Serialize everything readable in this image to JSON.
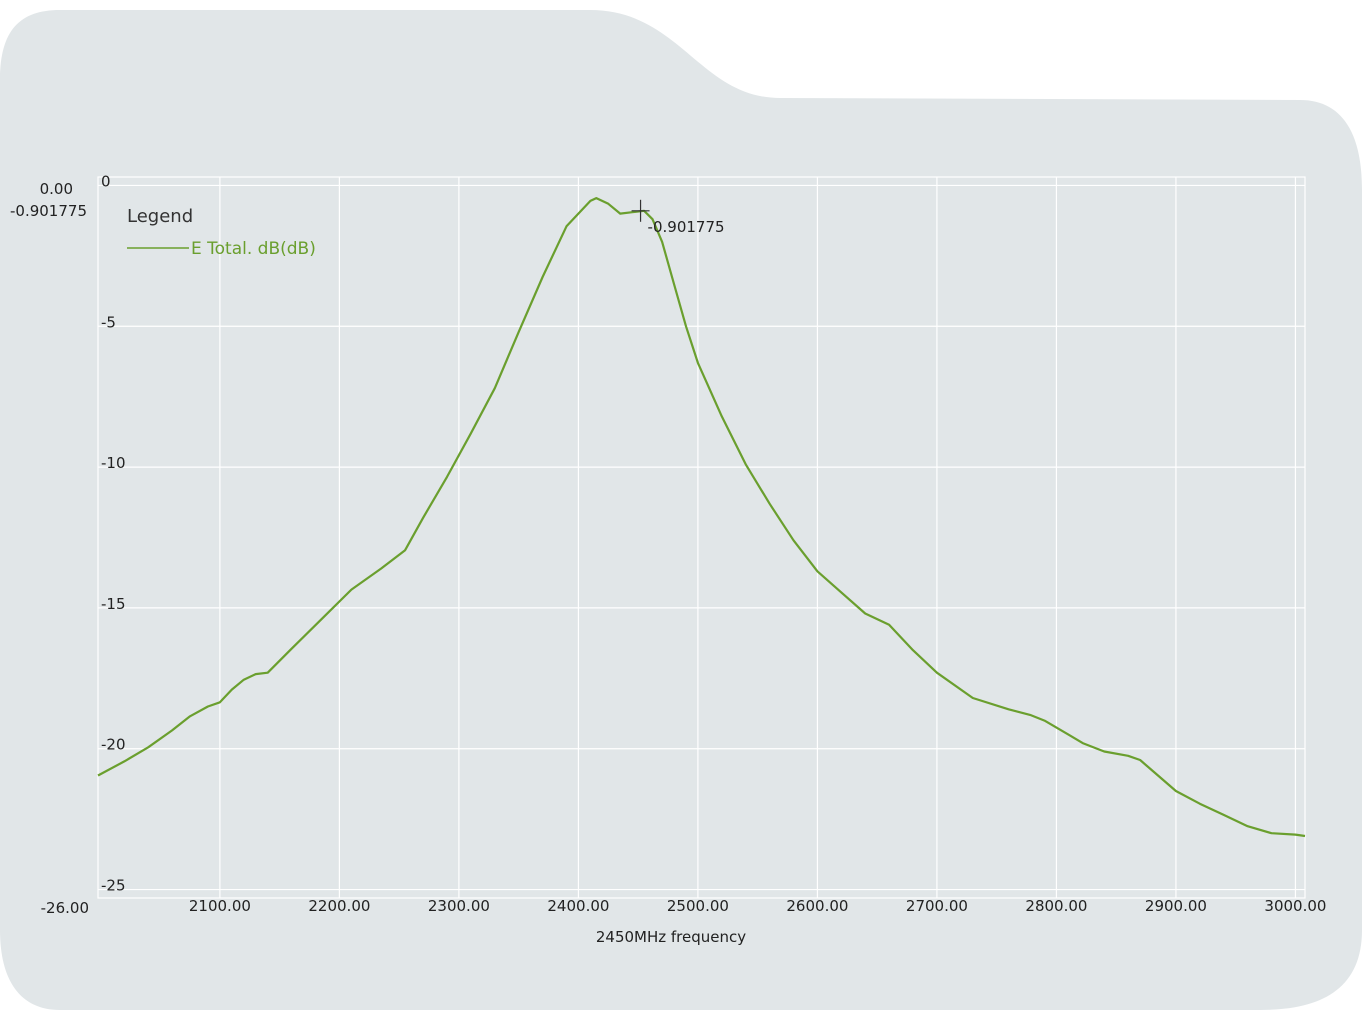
{
  "chart_data": {
    "type": "line",
    "title": "",
    "xlabel": "2450MHz frequency",
    "ylabel": "",
    "xlim": [
      1998,
      3008
    ],
    "ylim": [
      -25.3,
      0.3
    ],
    "x_ticks": [
      2100,
      2200,
      2300,
      2400,
      2500,
      2600,
      2700,
      2800,
      2900,
      3000
    ],
    "x_tick_labels": [
      "2100.00",
      "2200.00",
      "2300.00",
      "2400.00",
      "2500.00",
      "2600.00",
      "2700.00",
      "2800.00",
      "2900.00",
      "3000.00"
    ],
    "y_ticks": [
      0,
      -5,
      -10,
      -15,
      -20,
      -25
    ],
    "y_tick_labels": [
      "0",
      "-5",
      "-10",
      "-15",
      "-20",
      "-25"
    ],
    "y_range_labels": {
      "max": "0.00",
      "peak": "-0.901775",
      "min": "-26.00"
    },
    "grid": true,
    "legend": {
      "title": "Legend",
      "placement": "top-left"
    },
    "series": [
      {
        "name": "E Total. dB(dB)",
        "color": "#6a9f2e",
        "x": [
          1998,
          2020,
          2040,
          2060,
          2075,
          2090,
          2100,
          2110,
          2120,
          2130,
          2140,
          2160,
          2185,
          2210,
          2235,
          2255,
          2270,
          2290,
          2310,
          2330,
          2350,
          2370,
          2390,
          2410,
          2415,
          2425,
          2435,
          2445,
          2455,
          2462,
          2470,
          2480,
          2490,
          2500,
          2520,
          2540,
          2560,
          2580,
          2600,
          2620,
          2640,
          2660,
          2680,
          2700,
          2730,
          2760,
          2778,
          2790,
          2810,
          2822,
          2840,
          2860,
          2870,
          2885,
          2900,
          2920,
          2940,
          2960,
          2980,
          3000,
          3008
        ],
        "y": [
          -20.95,
          -20.45,
          -19.95,
          -19.35,
          -18.85,
          -18.5,
          -18.35,
          -17.9,
          -17.55,
          -17.35,
          -17.3,
          -16.45,
          -15.4,
          -14.35,
          -13.6,
          -12.95,
          -11.8,
          -10.35,
          -8.8,
          -7.2,
          -5.2,
          -3.25,
          -1.45,
          -0.55,
          -0.45,
          -0.65,
          -1.0,
          -0.95,
          -0.9,
          -1.2,
          -2.0,
          -3.5,
          -5.0,
          -6.3,
          -8.2,
          -9.9,
          -11.3,
          -12.6,
          -13.7,
          -14.45,
          -15.2,
          -15.6,
          -16.5,
          -17.3,
          -18.2,
          -18.6,
          -18.8,
          -19.0,
          -19.5,
          -19.8,
          -20.1,
          -20.25,
          -20.4,
          -20.95,
          -21.5,
          -21.95,
          -22.35,
          -22.75,
          -23.0,
          -23.05,
          -23.1
        ],
        "label_style": "small"
      }
    ],
    "marker": {
      "x": 2452,
      "y": -0.9,
      "label": "-0.901775"
    }
  }
}
